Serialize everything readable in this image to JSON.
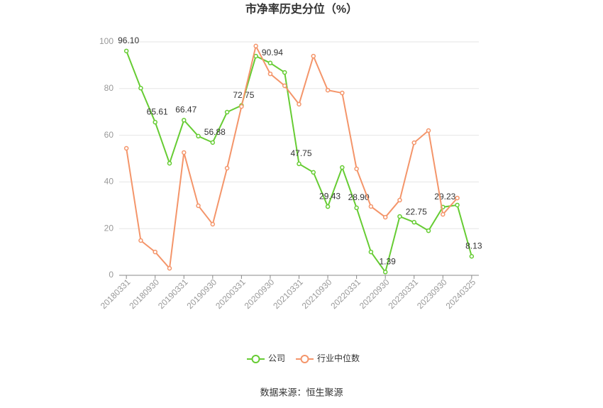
{
  "chart_data": {
    "type": "line",
    "title": "市净率历史分位（%）",
    "source": "数据来源：恒生聚源",
    "categories": [
      "20180331",
      null,
      "20180930",
      null,
      "20190331",
      null,
      "20190930",
      null,
      "20200331",
      null,
      "20200930",
      null,
      "20210331",
      null,
      "20210930",
      null,
      "20220331",
      null,
      "20220930",
      null,
      "20230331",
      null,
      "20230930",
      null,
      "20240325"
    ],
    "series": [
      {
        "name": "公司",
        "color": "#66cc33",
        "values": [
          96.1,
          80.2,
          65.61,
          48.0,
          66.47,
          59.6,
          56.88,
          69.9,
          72.75,
          93.9,
          90.94,
          86.9,
          47.75,
          44.1,
          29.43,
          46.2,
          28.9,
          10.0,
          1.39,
          25.2,
          22.75,
          19.1,
          29.23,
          30.1,
          8.13
        ],
        "value_labels": [
          "96.10",
          null,
          "65.61",
          null,
          "66.47",
          null,
          "56.88",
          null,
          "72.75",
          null,
          "90.94",
          null,
          "47.75",
          null,
          "29.43",
          null,
          "28.90",
          null,
          "1.39",
          null,
          "22.75",
          null,
          "29.23",
          null,
          "8.13"
        ]
      },
      {
        "name": "行业中位数",
        "color": "#f4956a",
        "values": [
          54.4,
          14.9,
          10.0,
          3.0,
          52.6,
          29.8,
          21.9,
          45.9,
          72.3,
          98.2,
          86.3,
          81.2,
          73.3,
          93.9,
          79.3,
          78.1,
          45.6,
          29.5,
          24.9,
          32.2,
          56.8,
          62.0,
          26.1,
          33.1,
          null
        ]
      }
    ],
    "ylim": [
      0,
      100
    ],
    "yticks": [
      0,
      20,
      40,
      60,
      80,
      100
    ],
    "grid": true,
    "legend": "bottom"
  }
}
